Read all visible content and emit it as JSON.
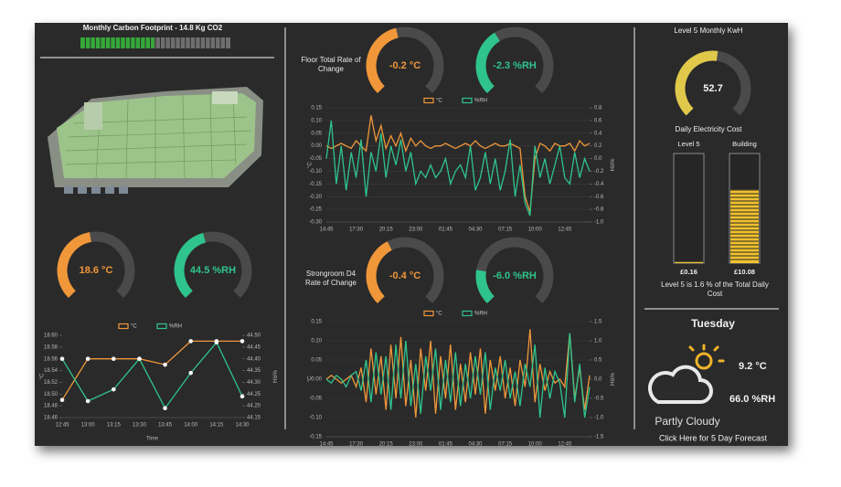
{
  "chart_data": [
    {
      "type": "progress",
      "title": "Monthly Carbon Footprint - 14.8 Kg CO2",
      "value": 14.8,
      "xlim": [
        0,
        30
      ],
      "color": "#35a83a"
    },
    {
      "type": "gauge",
      "value": 18.6,
      "value_label": "18.6 °C",
      "ylim": [
        0,
        40
      ],
      "color": "#f0973a"
    },
    {
      "type": "gauge",
      "value": 44.5,
      "value_label": "44.5 %RH",
      "ylim": [
        0,
        100
      ],
      "color": "#2fc48d"
    },
    {
      "type": "line",
      "xlabel": "Time",
      "ylabel": "°C",
      "y2label": "%RH",
      "grid": false,
      "markers": true,
      "categories": [
        "12:45",
        "13:00",
        "13:15",
        "13:30",
        "13:45",
        "14:00",
        "14:15",
        "14:30"
      ],
      "ylim": [
        18.46,
        18.6
      ],
      "yticks": [
        {
          "value": 18.6,
          "label": "18.60"
        },
        18.58,
        18.56,
        18.54,
        18.52,
        {
          "value": 18.5,
          "label": "18.50"
        },
        18.48,
        18.46
      ],
      "y2lim": [
        44.15,
        44.5
      ],
      "y2ticks": [
        {
          "value": 44.5,
          "label": "44.50"
        },
        44.45,
        {
          "value": 44.4,
          "label": "44.40"
        },
        44.35,
        {
          "value": 44.3,
          "label": "44.30"
        },
        44.25,
        {
          "value": 44.2,
          "label": "44.20"
        },
        44.15
      ],
      "series": [
        {
          "name": "°C",
          "color": "#f0973a",
          "values": [
            18.49,
            18.56,
            18.56,
            18.56,
            18.55,
            18.59,
            18.59,
            18.59
          ]
        },
        {
          "name": "%RH",
          "color": "#2fc48d",
          "axis": "y2",
          "values": [
            44.4,
            44.22,
            44.27,
            44.4,
            44.19,
            44.34,
            44.47,
            44.24
          ]
        }
      ]
    },
    {
      "type": "gauge",
      "value": -0.2,
      "value_label": "-0.2 °C",
      "ylim": [
        -2,
        2
      ],
      "color": "#f0973a"
    },
    {
      "type": "gauge",
      "value": -2.3,
      "value_label": "-2.3 %RH",
      "ylim": [
        -10,
        10
      ],
      "color": "#2fc48d"
    },
    {
      "type": "line",
      "title": "Floor Total Rate of Change",
      "ylabel": "°C",
      "y2label": "%RH",
      "grid": true,
      "markers": false,
      "categories": [
        "14:45",
        null,
        null,
        null,
        null,
        null,
        "17:30",
        null,
        null,
        null,
        null,
        null,
        "20:15",
        null,
        null,
        null,
        null,
        null,
        "23:00",
        null,
        null,
        null,
        null,
        null,
        "01:45",
        null,
        null,
        null,
        null,
        null,
        "04:30",
        null,
        null,
        null,
        null,
        null,
        "07:15",
        null,
        null,
        null,
        null,
        null,
        "10:00",
        null,
        null,
        null,
        null,
        null,
        "12:45",
        null,
        null,
        null,
        null,
        null
      ],
      "ylim": [
        -0.3,
        0.15
      ],
      "yticks": [
        0.15,
        {
          "value": 0.1,
          "label": "0.10"
        },
        0.05,
        {
          "value": 0,
          "label": "0.00"
        },
        -0.05,
        {
          "value": -0.1,
          "label": "-0.10"
        },
        -0.15,
        {
          "value": -0.2,
          "label": "-0.20"
        },
        -0.25,
        {
          "value": -0.3,
          "label": "-0.30"
        }
      ],
      "y2lim": [
        -1,
        0.8
      ],
      "y2ticks": [
        0.8,
        0.6,
        0.4,
        0.2,
        {
          "value": 0,
          "label": "0.0"
        },
        -0.2,
        -0.4,
        -0.6,
        -0.8,
        {
          "value": -1,
          "label": "-1.0"
        }
      ],
      "series": [
        {
          "name": "°C",
          "color": "#f0973a",
          "values": [
            0.0,
            -0.01,
            0.0,
            0.01,
            0.0,
            -0.01,
            0.02,
            0.0,
            -0.02,
            0.12,
            0.02,
            0.08,
            -0.01,
            0.04,
            0.0,
            0.05,
            -0.02,
            0.03,
            0.0,
            0.02,
            0.0,
            -0.01,
            0.0,
            0.0,
            0.01,
            0.0,
            -0.01,
            0.0,
            0.01,
            0.0,
            0.02,
            0.0,
            -0.01,
            0.0,
            0.01,
            0.0,
            0.0,
            0.01,
            0.0,
            -0.01,
            -0.2,
            -0.26,
            -0.05,
            0.01,
            0.0,
            -0.02,
            0.01,
            0.0,
            0.0,
            0.01,
            -0.02,
            0.02,
            0.0,
            0.01
          ]
        },
        {
          "name": "%RH",
          "color": "#2fc48d",
          "axis": "y2",
          "values": [
            0.0,
            0.6,
            -0.4,
            0.2,
            -0.5,
            0.1,
            -0.3,
            0.3,
            -0.6,
            0.1,
            -0.2,
            0.4,
            -0.3,
            0.2,
            -0.1,
            0.3,
            -0.2,
            0.1,
            -0.4,
            -0.2,
            -0.3,
            -0.1,
            -0.3,
            -0.2,
            0.0,
            -0.4,
            -0.2,
            -0.1,
            -0.3,
            0.2,
            -0.5,
            -0.3,
            0.1,
            -0.4,
            0.0,
            -0.5,
            -0.2,
            0.3,
            -0.6,
            -0.1,
            -0.7,
            -0.9,
            0.2,
            -0.3,
            0.0,
            -0.4,
            -0.1,
            0.2,
            -0.3,
            -0.4,
            0.1,
            -0.3,
            0.0,
            -0.2
          ]
        }
      ]
    },
    {
      "type": "gauge",
      "value": -0.4,
      "value_label": "-0.4 °C",
      "ylim": [
        -2,
        2
      ],
      "color": "#f0973a"
    },
    {
      "type": "gauge",
      "value": -6.0,
      "value_label": "-6.0 %RH",
      "ylim": [
        -10,
        10
      ],
      "color": "#2fc48d"
    },
    {
      "type": "line",
      "title": "Strongroom D4 Rate of Change",
      "ylabel": "°C",
      "y2label": "%RH",
      "grid": true,
      "markers": false,
      "categories": [
        "14:45",
        null,
        null,
        null,
        null,
        null,
        "17:30",
        null,
        null,
        null,
        null,
        null,
        "20:15",
        null,
        null,
        null,
        null,
        null,
        "23:00",
        null,
        null,
        null,
        null,
        null,
        "01:45",
        null,
        null,
        null,
        null,
        null,
        "04:30",
        null,
        null,
        null,
        null,
        null,
        "07:15",
        null,
        null,
        null,
        null,
        null,
        "10:00",
        null,
        null,
        null,
        null,
        null,
        "12:45",
        null,
        null,
        null,
        null,
        null
      ],
      "ylim": [
        -0.15,
        0.15
      ],
      "yticks": [
        0.15,
        {
          "value": 0.1,
          "label": "0.10"
        },
        0.05,
        {
          "value": 0,
          "label": "0.00"
        },
        -0.05,
        {
          "value": -0.1,
          "label": "-0.10"
        },
        -0.15
      ],
      "y2lim": [
        -1.5,
        1.5
      ],
      "y2ticks": [
        1.5,
        {
          "value": 1,
          "label": "1.0"
        },
        0.5,
        {
          "value": 0,
          "label": "0.0"
        },
        -0.5,
        {
          "value": -1,
          "label": "-1.0"
        },
        -1.5
      ],
      "series": [
        {
          "name": "°C",
          "color": "#f0973a",
          "values": [
            0.0,
            0.01,
            0.0,
            -0.01,
            0.0,
            0.01,
            -0.02,
            0.03,
            -0.06,
            0.08,
            -0.04,
            0.06,
            -0.08,
            0.09,
            -0.05,
            0.11,
            -0.07,
            0.05,
            -0.1,
            0.08,
            -0.03,
            0.1,
            -0.09,
            0.06,
            -0.05,
            0.09,
            -0.08,
            0.04,
            -0.06,
            0.07,
            -0.04,
            0.08,
            -0.09,
            0.05,
            -0.03,
            0.06,
            -0.05,
            0.03,
            -0.07,
            0.05,
            -0.02,
            0.13,
            -0.06,
            0.04,
            -0.03,
            0.02,
            -0.01,
            0.0,
            -0.02,
            0.12,
            -0.05,
            0.03,
            -0.08,
            0.01
          ]
        },
        {
          "name": "%RH",
          "color": "#2fc48d",
          "axis": "y2",
          "values": [
            0.0,
            -0.1,
            0.1,
            0.0,
            -0.2,
            0.1,
            0.2,
            -0.3,
            0.5,
            -0.6,
            0.7,
            -0.4,
            0.6,
            -0.8,
            0.9,
            -0.5,
            1.0,
            -0.7,
            0.4,
            -0.9,
            0.6,
            -0.3,
            0.8,
            -0.8,
            0.5,
            -0.6,
            0.7,
            -0.7,
            0.4,
            -0.5,
            0.6,
            -0.4,
            0.7,
            -0.8,
            0.3,
            -0.3,
            0.5,
            -0.5,
            0.2,
            -0.7,
            0.4,
            -0.2,
            0.9,
            -1.0,
            0.3,
            -0.5,
            0.2,
            -0.1,
            -1.0,
            1.2,
            -0.6,
            0.4,
            -1.0,
            -0.2
          ]
        }
      ]
    },
    {
      "type": "gauge",
      "title": "Level 5 Monthly KwH",
      "value": 52.7,
      "ylim": [
        0,
        100
      ],
      "color": "#e0c84a"
    },
    {
      "type": "bar",
      "title": "Daily Electricity Cost",
      "caption": "Level 5 is 1.6 % of the Total Daily Cost",
      "categories": [
        "Level 5",
        "Building"
      ],
      "values": [
        0.16,
        10.08
      ],
      "value_labels": [
        "£0.16",
        "£10.08"
      ],
      "ylim": [
        0,
        15
      ],
      "color": "#f2c22e"
    }
  ],
  "weather": {
    "day": "Tuesday",
    "temperature": "9.2 °C",
    "humidity": "66.0 %RH",
    "condition": "Partly Cloudy",
    "link": "Click Here for 5 Day Forecast"
  }
}
